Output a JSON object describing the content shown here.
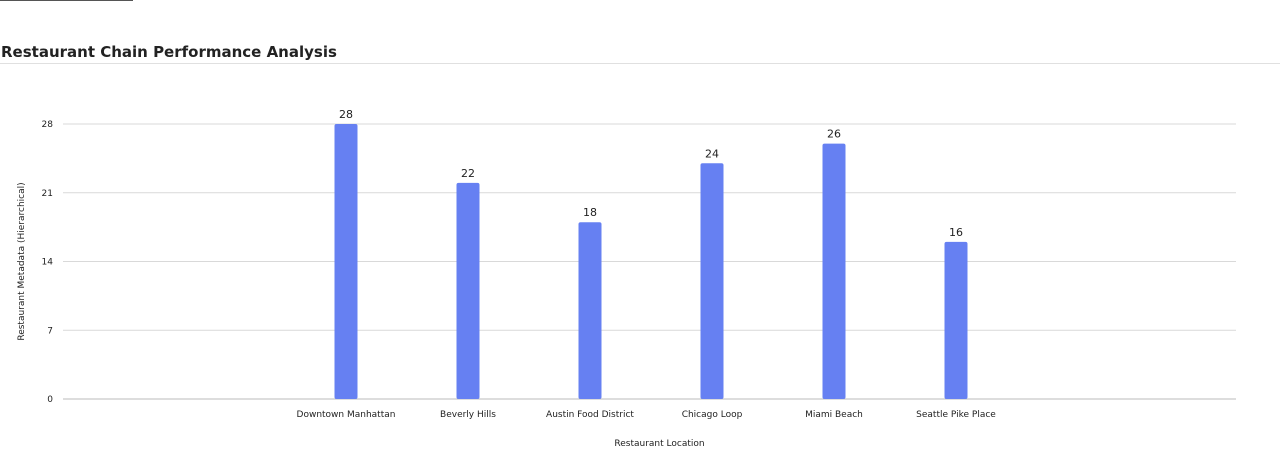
{
  "header": {
    "title": "Restaurant Chain Performance Analysis"
  },
  "chart_data": {
    "type": "bar",
    "title": "Restaurant Chain Performance Analysis",
    "xlabel": "Restaurant Location",
    "ylabel": "Restaurant Metadata (Hierarchical)",
    "categories": [
      "Downtown Manhattan",
      "Beverly Hills",
      "Austin Food District",
      "Chicago Loop",
      "Miami Beach",
      "Seattle Pike Place"
    ],
    "values": [
      28,
      22,
      18,
      24,
      26,
      16
    ],
    "ylim": [
      0,
      28
    ],
    "yticks": [
      0,
      7,
      14,
      21,
      28
    ],
    "grid": true,
    "data_labels": true,
    "colors": {
      "bar": "#6680f2",
      "grid": "#d9d9d9",
      "axis": "#bbbbbb"
    }
  }
}
